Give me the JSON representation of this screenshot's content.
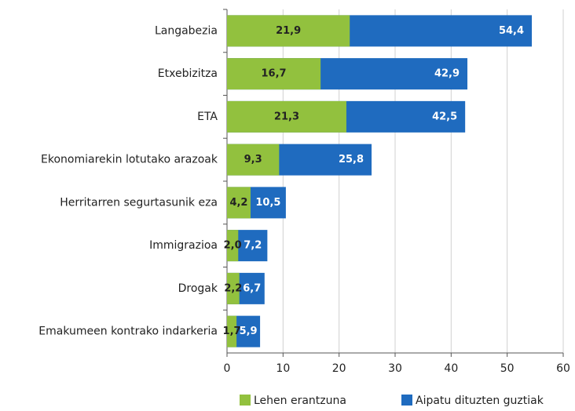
{
  "chart_data": {
    "type": "bar",
    "orientation": "horizontal",
    "overlap": true,
    "categories": [
      "Langabezia",
      "Etxebizitza",
      "ETA",
      "Ekonomiarekin lotutako arazoak",
      "Herritarren segurtasunik eza",
      "Immigrazioa",
      "Drogak",
      "Emakumeen kontrako indarkeria"
    ],
    "series": [
      {
        "name": "Aipatu dituzten guztiak",
        "color": "#1f6bbf",
        "values": [
          54.4,
          42.9,
          42.5,
          25.8,
          10.5,
          7.2,
          6.7,
          5.9
        ],
        "value_labels": [
          "54,4",
          "42,9",
          "42,5",
          "25,8",
          "10,5",
          "7,2",
          "6,7",
          "5,9"
        ]
      },
      {
        "name": "Lehen erantzuna",
        "color": "#92c13e",
        "values": [
          21.9,
          16.7,
          21.3,
          9.3,
          4.2,
          2.0,
          2.2,
          1.7
        ],
        "value_labels": [
          "21,9",
          "16,7",
          "21,3",
          "9,3",
          "4,2",
          "2,0",
          "2,2",
          "1,7"
        ]
      }
    ],
    "xlim": [
      0,
      60
    ],
    "xticks": [
      0,
      10,
      20,
      30,
      40,
      50,
      60
    ],
    "grid": true,
    "legend": "bottom"
  }
}
